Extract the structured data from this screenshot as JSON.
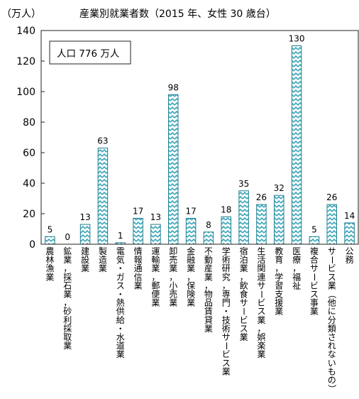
{
  "chart_data": {
    "type": "bar",
    "title": "産業別就業者数（2015 年、女性 30 歳台）",
    "ylabel": "（万人）",
    "xlabel": "",
    "ylim": [
      0,
      140
    ],
    "yticks": [
      0,
      20,
      40,
      60,
      80,
      100,
      120,
      140
    ],
    "annotation": "人口 776 万人",
    "bar_fill": "#3aa6b9",
    "bar_pattern": "zigzag",
    "categories": [
      "農林漁業",
      "鉱業，採石業，砂利採取業",
      "建設業",
      "製造業",
      "電気・ガス・熱供給・水道業",
      "情報通信業",
      "運輸業，郵便業",
      "卸売業，小売業",
      "金融業，保険業",
      "不動産業，物品賃貸業",
      "学術研究，専門・技術サービス業",
      "宿泊業，飲食サービス業",
      "生活関連サービス業，娯楽業",
      "教育，学習支援業",
      "医療，福祉",
      "複合サービス事業",
      "サービス業（他に分類されないもの）",
      "公務"
    ],
    "values": [
      5,
      0,
      13,
      63,
      1,
      17,
      13,
      98,
      17,
      8,
      18,
      35,
      26,
      32,
      130,
      5,
      26,
      14
    ]
  }
}
